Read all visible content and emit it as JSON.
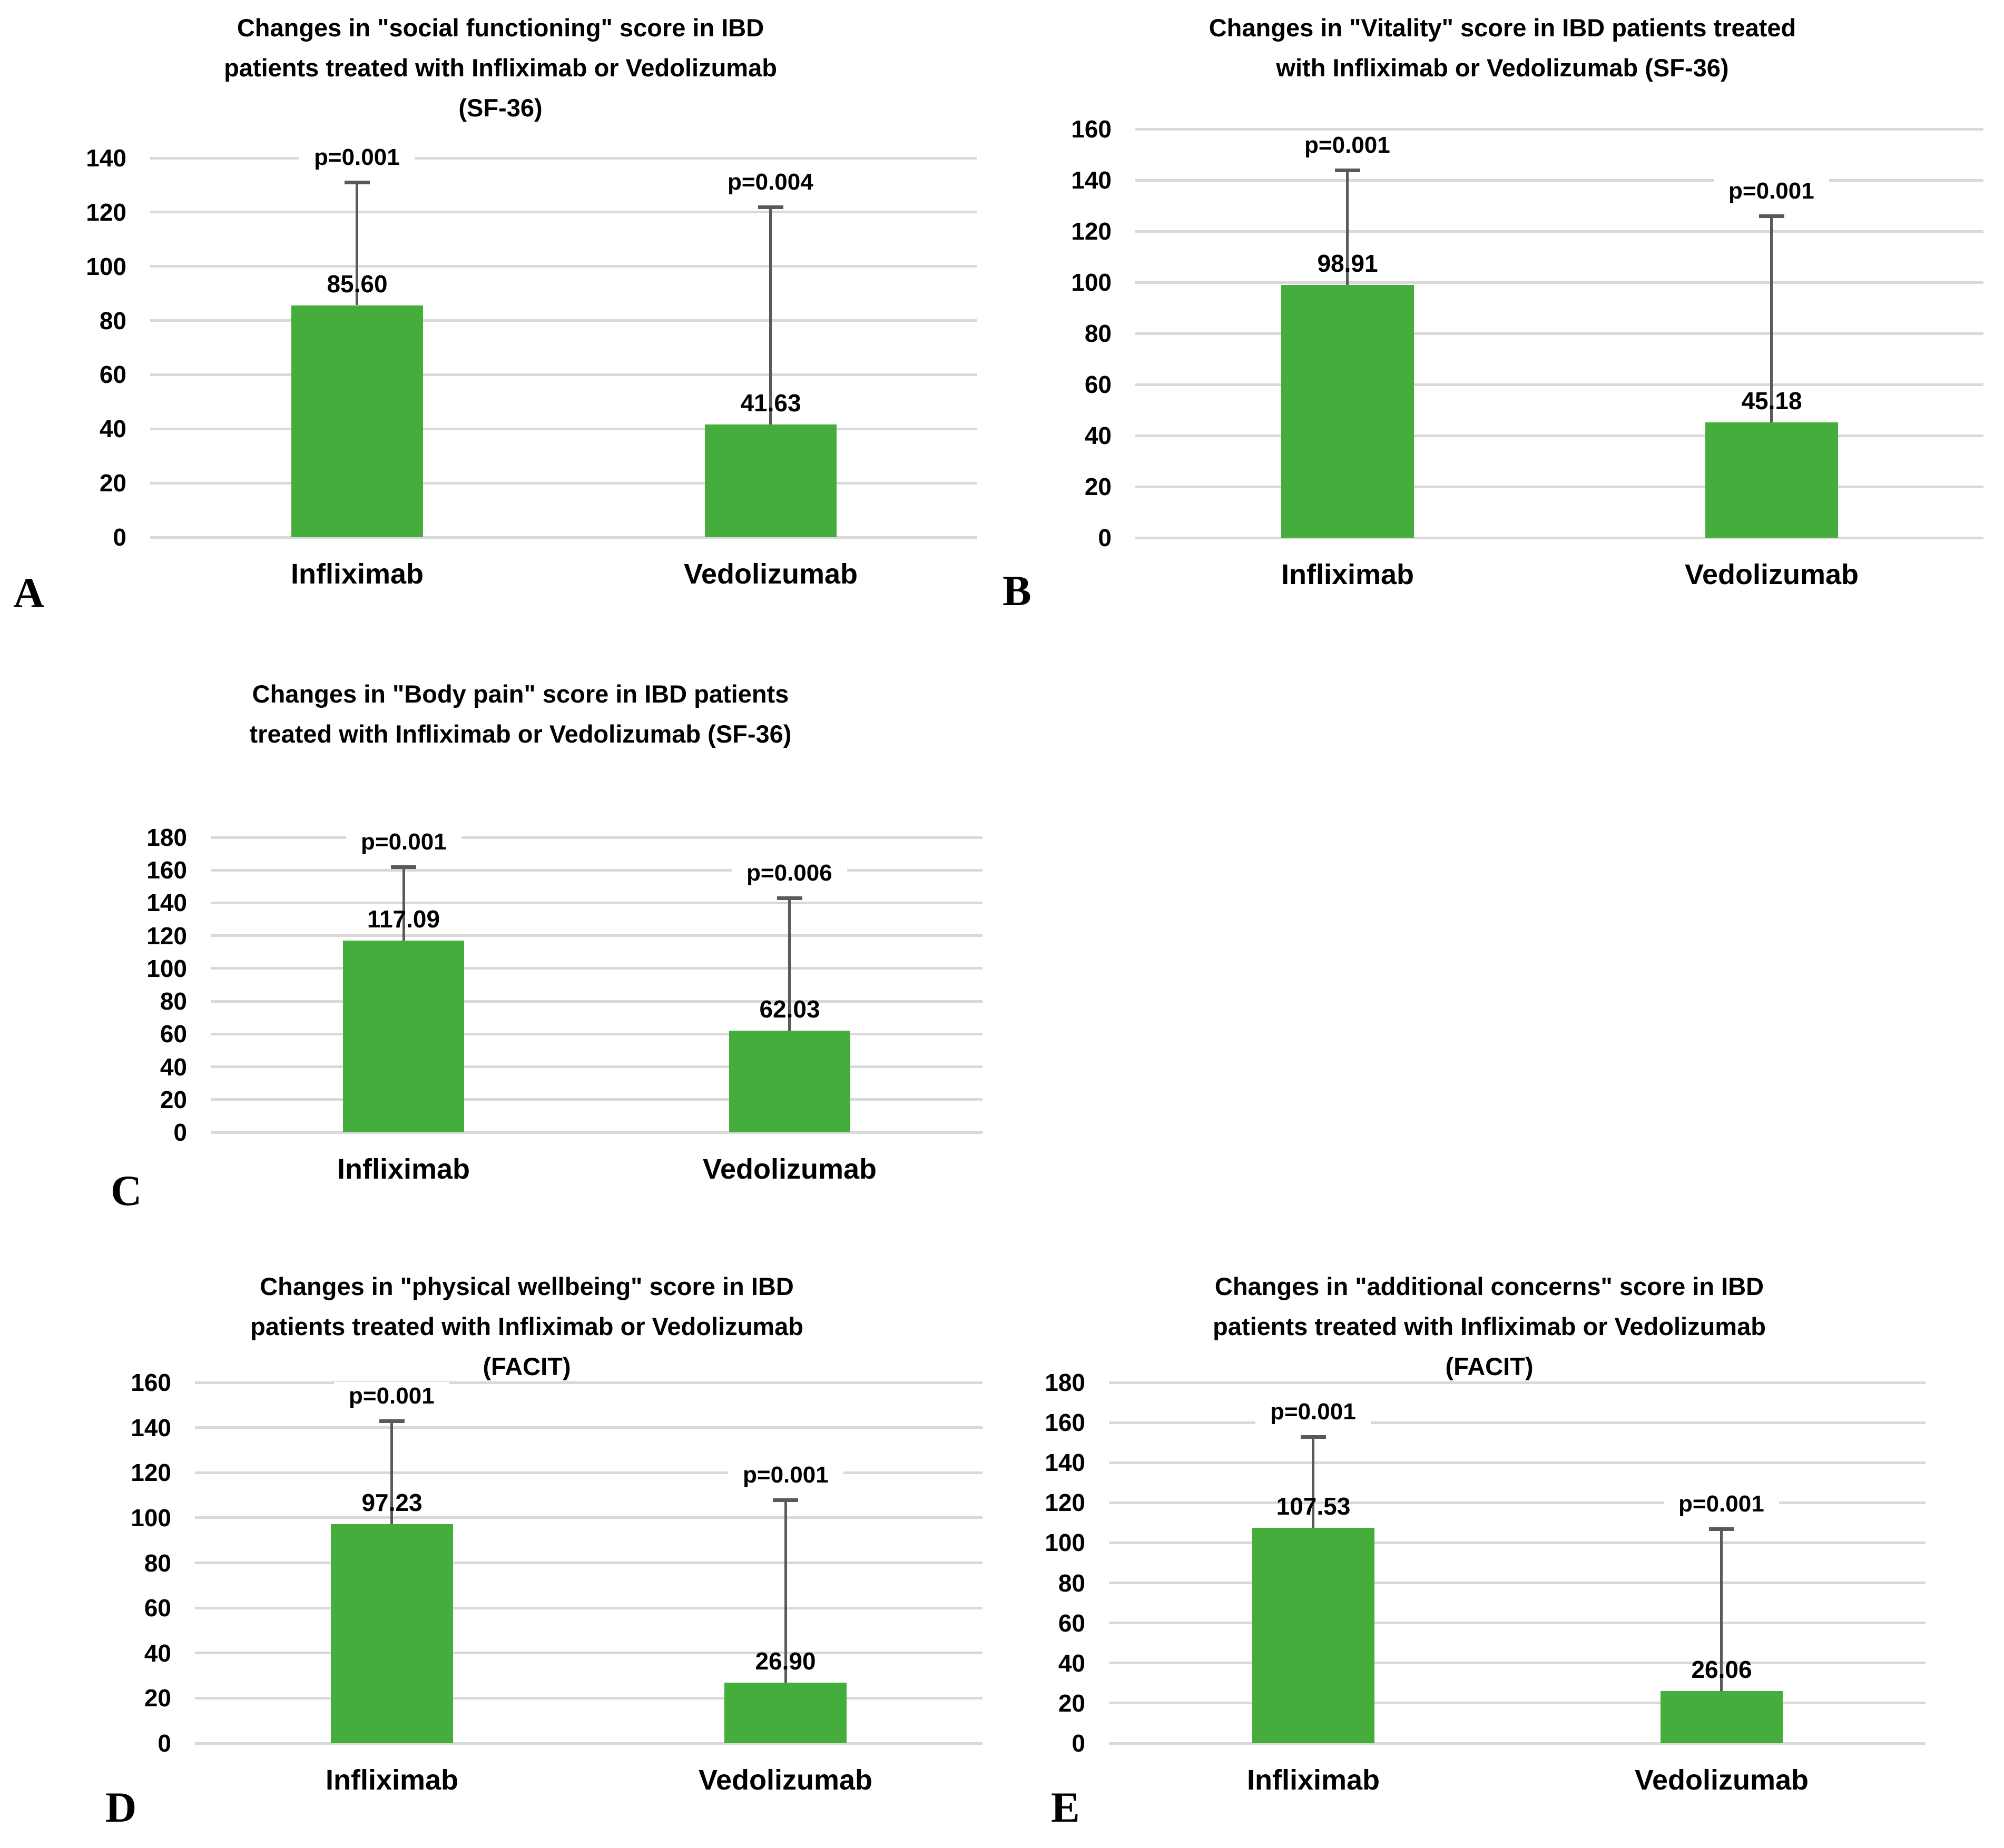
{
  "figure": {
    "background_color": "#ffffff",
    "bar_color": "#44ad3c",
    "gridline_color": "#d9d9d9",
    "error_bar_color": "#595959",
    "text_color": "#000000"
  },
  "chart_data": [
    {
      "panel_label": "A",
      "type": "bar",
      "title_lines": [
        "Changes in \"social functioning\" score in IBD",
        "patients treated with Infliximab or Vedolizumab",
        "(SF-36)"
      ],
      "title": "Changes in \"social functioning\" score in IBD patients treated with Infliximab or Vedolizumab (SF-36)",
      "categories": [
        "Infliximab",
        "Vedolizumab"
      ],
      "values": [
        85.6,
        41.63
      ],
      "value_labels": [
        "85.60",
        "41.63"
      ],
      "error_bar_tops": [
        131,
        122
      ],
      "p_labels": [
        "p=0.001",
        "p=0.004"
      ],
      "xlabel": "",
      "ylabel": "",
      "ylim": [
        0,
        140
      ],
      "yticks": [
        0,
        20,
        40,
        60,
        80,
        100,
        120,
        140
      ],
      "grid": true,
      "legend": false
    },
    {
      "panel_label": "B",
      "type": "bar",
      "title_lines": [
        "Changes in \"Vitality\" score in IBD patients treated",
        "with Infliximab or Vedolizumab (SF-36)"
      ],
      "title": "Changes in \"Vitality\" score in IBD patients treated with Infliximab or Vedolizumab (SF-36)",
      "categories": [
        "Infliximab",
        "Vedolizumab"
      ],
      "values": [
        98.91,
        45.18
      ],
      "value_labels": [
        "98.91",
        "45.18"
      ],
      "error_bar_tops": [
        144,
        126
      ],
      "p_labels": [
        "p=0.001",
        "p=0.001"
      ],
      "xlabel": "",
      "ylabel": "",
      "ylim": [
        0,
        160
      ],
      "yticks": [
        0,
        20,
        40,
        60,
        80,
        100,
        120,
        140,
        160
      ],
      "grid": true,
      "legend": false
    },
    {
      "panel_label": "C",
      "type": "bar",
      "title_lines": [
        "Changes in \"Body pain\" score in IBD patients",
        "treated with Infliximab or Vedolizumab (SF-36)"
      ],
      "title": "Changes in \"Body pain\" score in IBD patients treated with Infliximab or Vedolizumab (SF-36)",
      "categories": [
        "Infliximab",
        "Vedolizumab"
      ],
      "values": [
        117.09,
        62.03
      ],
      "value_labels": [
        "117.09",
        "62.03"
      ],
      "error_bar_tops": [
        162,
        143
      ],
      "p_labels": [
        "p=0.001",
        "p=0.006"
      ],
      "xlabel": "",
      "ylabel": "",
      "ylim": [
        0,
        180
      ],
      "yticks": [
        0,
        20,
        40,
        60,
        80,
        100,
        120,
        140,
        160,
        180
      ],
      "grid": true,
      "legend": false
    },
    {
      "panel_label": "D",
      "type": "bar",
      "title_lines": [
        "Changes in \"physical wellbeing\" score in IBD",
        "patients treated with Infliximab or Vedolizumab",
        "(FACIT)"
      ],
      "title": "Changes in \"physical wellbeing\" score in IBD patients treated with Infliximab or Vedolizumab (FACIT)",
      "categories": [
        "Infliximab",
        "Vedolizumab"
      ],
      "values": [
        97.23,
        26.9
      ],
      "value_labels": [
        "97.23",
        "26.90"
      ],
      "error_bar_tops": [
        143,
        108
      ],
      "p_labels": [
        "p=0.001",
        "p=0.001"
      ],
      "xlabel": "",
      "ylabel": "",
      "ylim": [
        0,
        160
      ],
      "yticks": [
        0,
        20,
        40,
        60,
        80,
        100,
        120,
        140,
        160
      ],
      "grid": true,
      "legend": false
    },
    {
      "panel_label": "E",
      "type": "bar",
      "title_lines": [
        "Changes in \"additional concerns\" score in IBD",
        "patients treated with Infliximab or Vedolizumab",
        "(FACIT)"
      ],
      "title": "Changes in \"additional concerns\" score in IBD patients treated with Infliximab or Vedolizumab (FACIT)",
      "categories": [
        "Infliximab",
        "Vedolizumab"
      ],
      "values": [
        107.53,
        26.06
      ],
      "value_labels": [
        "107.53",
        "26.06"
      ],
      "error_bar_tops": [
        153,
        107
      ],
      "p_labels": [
        "p=0.001",
        "p=0.001"
      ],
      "xlabel": "",
      "ylabel": "",
      "ylim": [
        0,
        180
      ],
      "yticks": [
        0,
        20,
        40,
        60,
        80,
        100,
        120,
        140,
        160,
        180
      ],
      "grid": true,
      "legend": false
    }
  ]
}
